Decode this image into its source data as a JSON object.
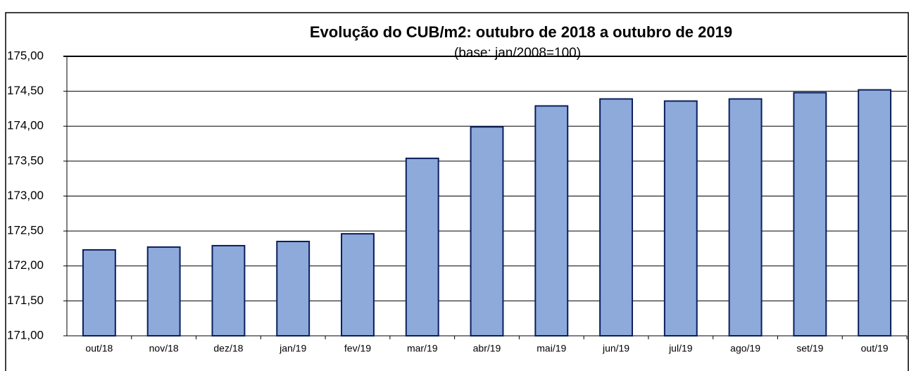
{
  "chart_data": {
    "type": "bar",
    "title": "Evolução do CUB/m2: outubro de 2018 a outubro de 2019",
    "subtitle": "(base: jan/2008=100)",
    "categories": [
      "out/18",
      "nov/18",
      "dez/18",
      "jan/19",
      "fev/19",
      "mar/19",
      "abr/19",
      "mai/19",
      "jun/19",
      "jul/19",
      "ago/19",
      "set/19",
      "out/19"
    ],
    "values": [
      172.23,
      172.27,
      172.29,
      172.35,
      172.46,
      173.54,
      173.99,
      174.29,
      174.39,
      174.36,
      174.39,
      174.48,
      174.52
    ],
    "color": "#8eaadb",
    "ylim": [
      171,
      175
    ],
    "yticks": [
      {
        "value": 171,
        "label": "171,00"
      },
      {
        "value": 171.5,
        "label": "171,50"
      },
      {
        "value": 172,
        "label": "172,00"
      },
      {
        "value": 172.5,
        "label": "172,50"
      },
      {
        "value": 173,
        "label": "173,00"
      },
      {
        "value": 173.5,
        "label": "173,50"
      },
      {
        "value": 174,
        "label": "174,00"
      },
      {
        "value": 174.5,
        "label": "174,50"
      },
      {
        "value": 175,
        "label": "175,00"
      }
    ],
    "grid": true
  }
}
